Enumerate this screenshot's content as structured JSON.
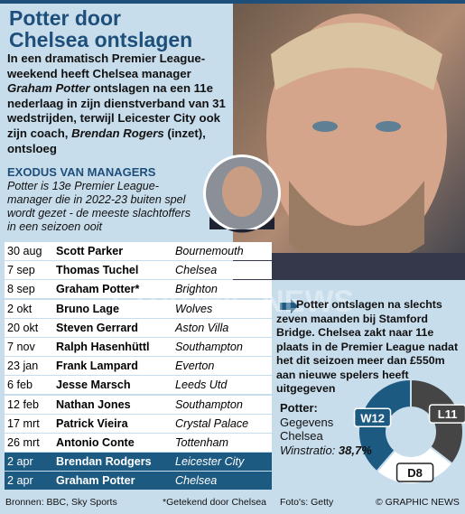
{
  "header": {
    "title": [
      "Potter door",
      "Chelsea ontslagen"
    ],
    "intro": [
      {
        "text": "In een dramatisch Premier League-weekend heeft Chelsea manager ",
        "em": false
      },
      {
        "text": "Graham Potter",
        "em": true
      },
      {
        "text": " ontslagen na een 11e nederlaag in zijn dienstverband van 31 wedstrijden, terwijl Leicester City ook zijn coach, ",
        "em": false
      },
      {
        "text": "Brendan Rogers",
        "em": true
      },
      {
        "text": " (inzet), ontsloeg",
        "em": false
      }
    ]
  },
  "section": {
    "title": "EXODUS VAN MANAGERS",
    "subtitle": "Potter is 13e Premier League-manager die in 2022-23  buiten spel wordt gezet - de meeste slachtoffers in een seizoen ooit"
  },
  "table": {
    "rows": [
      {
        "date": "30 aug",
        "name": "Scott Parker",
        "club": "Bournemouth",
        "highlight": false
      },
      {
        "date": "7 sep",
        "name": "Thomas Tuchel",
        "club": "Chelsea",
        "highlight": false
      },
      {
        "date": "8 sep",
        "name": "Graham Potter*",
        "club": "Brighton",
        "highlight": false
      },
      {
        "date": "2 okt",
        "name": "Bruno Lage",
        "club": "Wolves",
        "highlight": false
      },
      {
        "date": "20 okt",
        "name": "Steven Gerrard",
        "club": "Aston Villa",
        "highlight": false
      },
      {
        "date": "7 nov",
        "name": "Ralph Hasenhüttl",
        "club": "Southampton",
        "highlight": false
      },
      {
        "date": "23 jan",
        "name": "Frank Lampard",
        "club": "Everton",
        "highlight": false
      },
      {
        "date": "6 feb",
        "name": "Jesse Marsch",
        "club": "Leeds Utd",
        "highlight": false
      },
      {
        "date": "12 feb",
        "name": "Nathan Jones",
        "club": "Southampton",
        "highlight": false
      },
      {
        "date": "17 mrt",
        "name": "Patrick Vieira",
        "club": "Crystal Palace",
        "highlight": false
      },
      {
        "date": "26 mrt",
        "name": "Antonio Conte",
        "club": "Tottenham",
        "highlight": false
      },
      {
        "date": "2 apr",
        "name": "Brendan Rodgers",
        "club": "Leicester City",
        "highlight": true
      },
      {
        "date": "2 apr",
        "name": "Graham Potter",
        "club": "Chelsea",
        "highlight": true
      }
    ]
  },
  "note": "Potter ontslagen na slechts zeven maanden bij Stamford Bridge. Chelsea zakt naar 11e plaats in de Premier League nadat het dit seizoen meer dan £550m aan nieuwe spelers heeft uitgegeven",
  "stats": {
    "heading": "Potter:",
    "lines": [
      "Gegevens",
      "Chelsea"
    ],
    "ratio_label": "Winstratio:",
    "ratio": "38,7%"
  },
  "chart_data": {
    "type": "pie",
    "values": [
      12,
      11,
      8
    ],
    "value_labels": [
      "W12",
      "L11",
      "D8"
    ],
    "colors": [
      "#1d5a82",
      "#454545",
      "#ffffff"
    ],
    "donut": true
  },
  "watermark": "GRAPHIC NEWS",
  "footer": {
    "sources": "Bronnen: BBC, Sky Sports",
    "footnote": "*Getekend door Chelsea",
    "photos": "Foto's: Getty",
    "copyright": "© GRAPHIC NEWS"
  }
}
